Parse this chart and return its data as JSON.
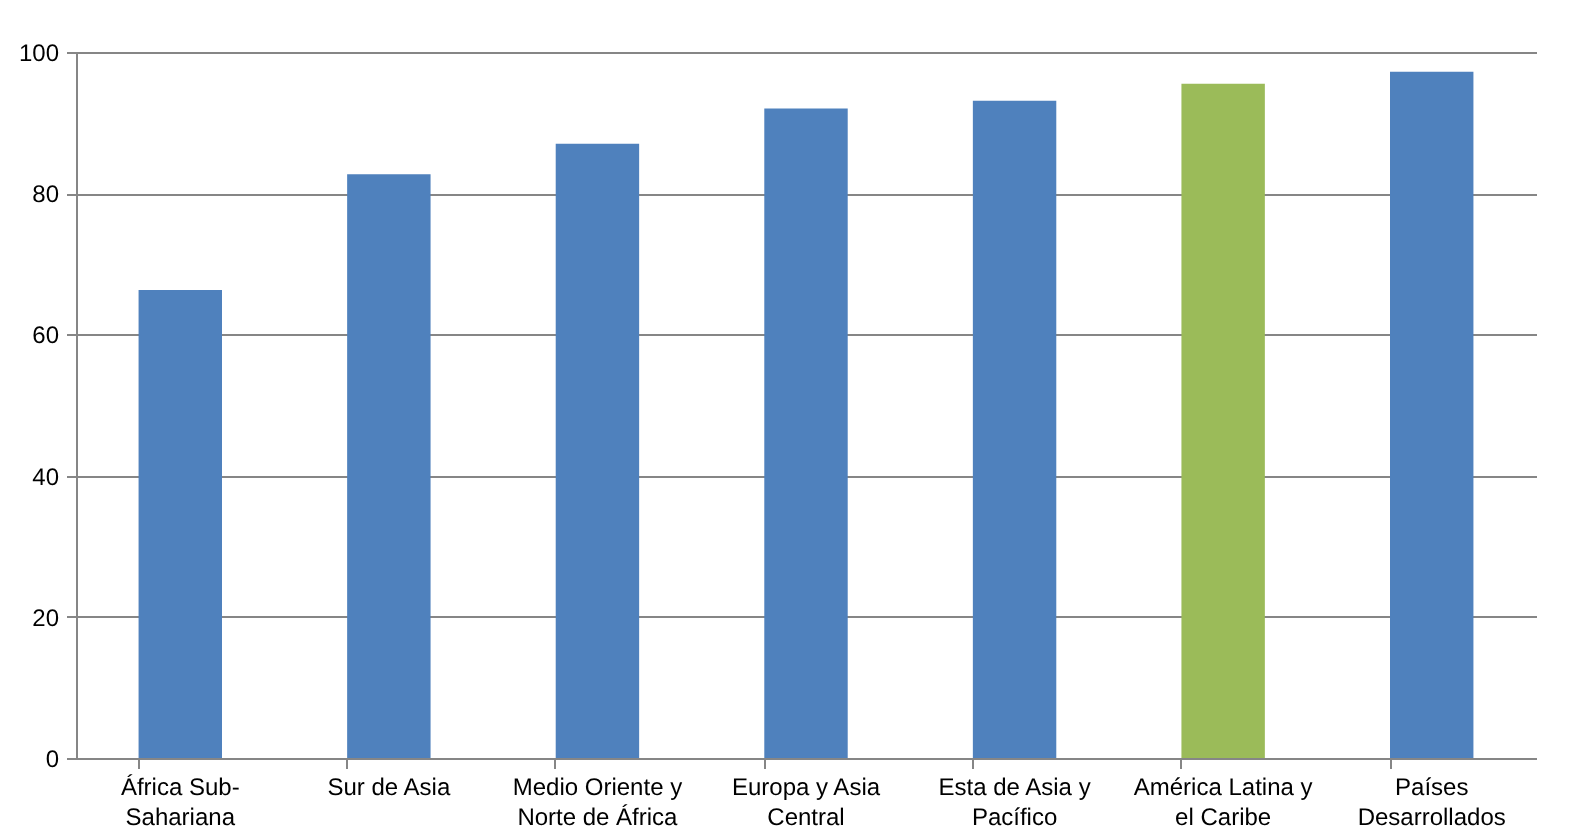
{
  "chart_data": {
    "type": "bar",
    "categories": [
      "África Sub-Sahariana",
      "Sur de Asia",
      "Medio Oriente y Norte de África",
      "Europa y Asia Central",
      "Esta de Asia y Pacífico",
      "América Latina y el Caribe",
      "Países Desarrollados"
    ],
    "values": [
      66.3,
      82.7,
      87.0,
      92.0,
      93.1,
      95.5,
      97.2
    ],
    "colors": [
      "#4f81bd",
      "#4f81bd",
      "#4f81bd",
      "#4f81bd",
      "#4f81bd",
      "#9bbb59",
      "#4f81bd"
    ],
    "ylim": [
      0,
      100
    ],
    "yticks": [
      0,
      20,
      40,
      60,
      80,
      100
    ],
    "grid": "y"
  }
}
